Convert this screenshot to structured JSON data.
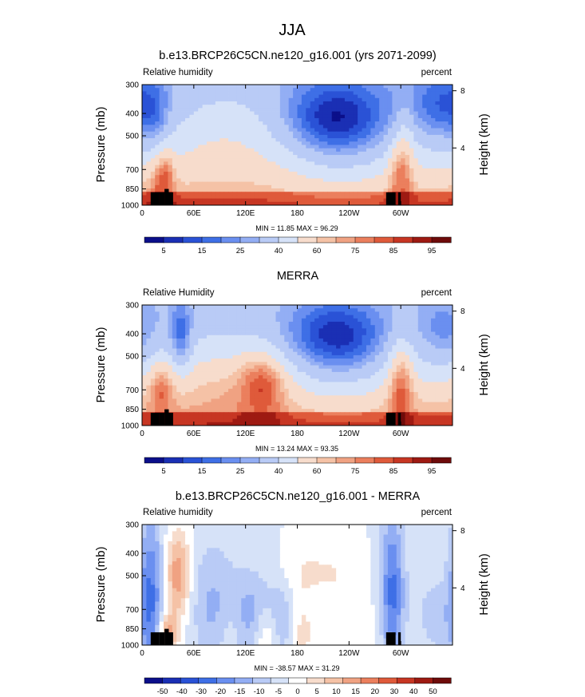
{
  "figure_title": "JJA",
  "colors": {
    "rh_palette": [
      "#0b0f8a",
      "#1a2fb4",
      "#2a52d6",
      "#3e6fe6",
      "#6a8ff0",
      "#93aef4",
      "#b9cbf6",
      "#d6e2f8",
      "#f7dccc",
      "#f5c2a6",
      "#f0a282",
      "#eb7f5d",
      "#df5a3a",
      "#c73623",
      "#9e1a12",
      "#6e0b0a"
    ],
    "diff_palette": [
      "#0b0f8a",
      "#1a2fb4",
      "#2a52d6",
      "#3e6fe6",
      "#6a8ff0",
      "#93aef4",
      "#b9cbf6",
      "#d6e2f8",
      "#ffffff",
      "#f7dccc",
      "#f5c2a6",
      "#f0a282",
      "#eb7f5d",
      "#df5a3a",
      "#c73623",
      "#9e1a12",
      "#6e0b0a"
    ],
    "topography": "#000000"
  },
  "chart_data": [
    {
      "type": "heatmap",
      "title": "b.e13.BRCP26C5CN.ne120_g16.001 (yrs 2071-2099)",
      "left_label": "Relative humidity",
      "right_label": "percent",
      "ylabel": "Pressure (mb)",
      "ylabel_right": "Height (km)",
      "x_ticks": [
        "0",
        "60E",
        "120E",
        "180",
        "120W",
        "60W"
      ],
      "x_tick_lon": [
        0,
        60,
        120,
        180,
        240,
        300
      ],
      "xlim": [
        0,
        360
      ],
      "y_ticks": [
        "300",
        "400",
        "500",
        "700",
        "850",
        "1000"
      ],
      "y_tick_p": [
        300,
        400,
        500,
        700,
        850,
        1000
      ],
      "ylim": [
        1000,
        300
      ],
      "y_scale": "log",
      "right_ticks": [
        "8",
        "4"
      ],
      "right_tick_km": [
        8,
        4
      ],
      "stats": "MIN =  11.85  MAX =  96.29",
      "min": 11.85,
      "max": 96.29,
      "colorbar_labels": [
        "5",
        "15",
        "25",
        "40",
        "60",
        "75",
        "85",
        "95"
      ],
      "levels": [
        5,
        10,
        15,
        20,
        25,
        30,
        40,
        50,
        60,
        65,
        70,
        75,
        80,
        85,
        90,
        95
      ],
      "field": "model_rh"
    },
    {
      "type": "heatmap",
      "title": "MERRA",
      "left_label": "Relative Humidity",
      "right_label": "percent",
      "ylabel": "Pressure (mb)",
      "ylabel_right": "Height (km)",
      "x_ticks": [
        "0",
        "60E",
        "120E",
        "180",
        "120W",
        "60W"
      ],
      "x_tick_lon": [
        0,
        60,
        120,
        180,
        240,
        300
      ],
      "xlim": [
        0,
        360
      ],
      "y_ticks": [
        "300",
        "400",
        "500",
        "700",
        "850",
        "1000"
      ],
      "y_tick_p": [
        300,
        400,
        500,
        700,
        850,
        1000
      ],
      "ylim": [
        1000,
        300
      ],
      "y_scale": "log",
      "right_ticks": [
        "8",
        "4"
      ],
      "right_tick_km": [
        8,
        4
      ],
      "stats": "MIN =  13.24  MAX =  93.35",
      "min": 13.24,
      "max": 93.35,
      "colorbar_labels": [
        "5",
        "15",
        "25",
        "40",
        "60",
        "75",
        "85",
        "95"
      ],
      "levels": [
        5,
        10,
        15,
        20,
        25,
        30,
        40,
        50,
        60,
        65,
        70,
        75,
        80,
        85,
        90,
        95
      ],
      "field": "merra_rh"
    },
    {
      "type": "heatmap",
      "title": "b.e13.BRCP26C5CN.ne120_g16.001 - MERRA",
      "left_label": "Relative humidity",
      "right_label": "percent",
      "ylabel": "Pressure (mb)",
      "ylabel_right": "Height (km)",
      "x_ticks": [
        "0",
        "60E",
        "120E",
        "180",
        "120W",
        "60W"
      ],
      "x_tick_lon": [
        0,
        60,
        120,
        180,
        240,
        300
      ],
      "xlim": [
        0,
        360
      ],
      "y_ticks": [
        "300",
        "400",
        "500",
        "700",
        "850",
        "1000"
      ],
      "y_tick_p": [
        300,
        400,
        500,
        700,
        850,
        1000
      ],
      "ylim": [
        1000,
        300
      ],
      "y_scale": "log",
      "right_ticks": [
        "8",
        "4"
      ],
      "right_tick_km": [
        8,
        4
      ],
      "stats": "MIN = -38.57  MAX =  31.29",
      "min": -38.57,
      "max": 31.29,
      "colorbar_labels": [
        "-50",
        "-40",
        "-30",
        "-20",
        "-15",
        "-10",
        "-5",
        "0",
        "5",
        "10",
        "15",
        "20",
        "30",
        "40",
        "50"
      ],
      "levels": [
        -50,
        -40,
        -30,
        -20,
        -15,
        -10,
        -5,
        0,
        5,
        10,
        15,
        20,
        30,
        40,
        50
      ],
      "field": "difference"
    }
  ]
}
